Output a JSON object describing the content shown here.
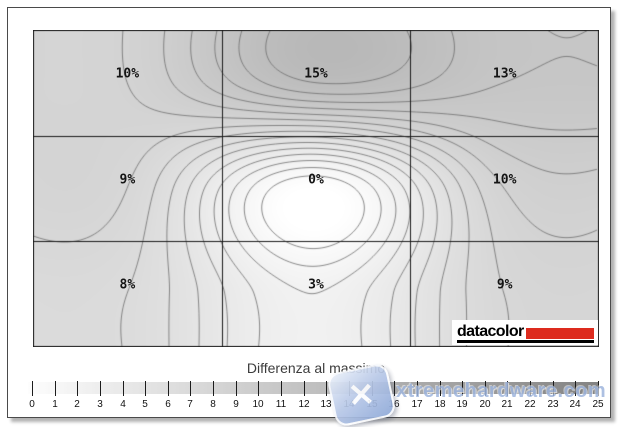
{
  "chart_data": {
    "type": "heatmap",
    "subtype": "contour-map",
    "grid_rows": 3,
    "grid_cols": 3,
    "cell_labels": [
      [
        "10%",
        "15%",
        "13%"
      ],
      [
        "9%",
        "0%",
        "10%"
      ],
      [
        "8%",
        "3%",
        "9%"
      ]
    ],
    "cell_values": [
      [
        10,
        15,
        13
      ],
      [
        9,
        0,
        10
      ],
      [
        8,
        3,
        9
      ]
    ],
    "contour_level_min": 1,
    "contour_level_max": 15,
    "contour_levels_step": 1,
    "contour_line_color": "#6e6e6e",
    "grid_line_color": "#1a1a1a",
    "plot_border_color": "#1a1a1a",
    "shade_gray_per_unit": 4.4,
    "legend_position": "bottom",
    "scale": {
      "title": "Differenza al massimo",
      "min": 0,
      "max": 25,
      "tick_labels": [
        "0",
        "1",
        "2",
        "3",
        "4",
        "5",
        "6",
        "7",
        "8",
        "9",
        "10",
        "11",
        "12",
        "13",
        "14",
        "15",
        "16",
        "17",
        "18",
        "19",
        "20",
        "21",
        "22",
        "23",
        "24",
        "25"
      ],
      "gradient_start": "#fdfdfd",
      "gradient_end": "#838383"
    }
  },
  "logo": {
    "text": "datacolor",
    "bar_color": "#dd2b1e",
    "underline_color": "#000000"
  },
  "watermark": {
    "text": "xtremehardware.com",
    "color": "#9fb6dd"
  }
}
